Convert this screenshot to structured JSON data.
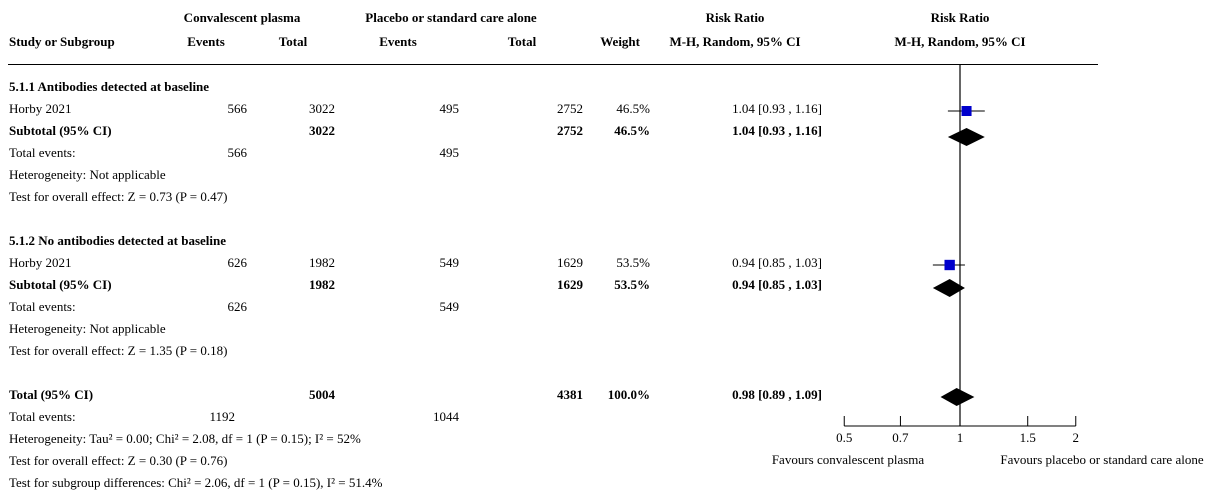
{
  "header": {
    "group1": "Convalescent plasma",
    "group2": "Placebo or standard care alone",
    "rr_top": "Risk Ratio",
    "rr_plot_top": "Risk Ratio",
    "study_col": "Study or Subgroup",
    "events1": "Events",
    "total1": "Total",
    "events2": "Events",
    "total2": "Total",
    "weight": "Weight",
    "method": "M-H, Random, 95% CI",
    "method_plot": "M-H, Random, 95% CI"
  },
  "sub1": {
    "title": "5.1.1 Antibodies detected at baseline",
    "study": "Horby 2021",
    "e1": "566",
    "t1": "3022",
    "e2": "495",
    "t2": "2752",
    "w": "46.5%",
    "ci": "1.04 [0.93 , 1.16]",
    "subtotal_label": "Subtotal (95% CI)",
    "st1": "3022",
    "st2": "2752",
    "sw": "46.5%",
    "sci": "1.04 [0.93 , 1.16]",
    "te_label": "Total events:",
    "te1": "566",
    "te2": "495",
    "het": "Heterogeneity: Not applicable",
    "test": "Test for overall effect: Z = 0.73 (P = 0.47)"
  },
  "sub2": {
    "title": "5.1.2 No antibodies detected at baseline",
    "study": "Horby 2021",
    "e1": "626",
    "t1": "1982",
    "e2": "549",
    "t2": "1629",
    "w": "53.5%",
    "ci": "0.94 [0.85 , 1.03]",
    "subtotal_label": "Subtotal (95% CI)",
    "st1": "1982",
    "st2": "1629",
    "sw": "53.5%",
    "sci": "0.94 [0.85 , 1.03]",
    "te_label": "Total events:",
    "te1": "626",
    "te2": "549",
    "het": "Heterogeneity: Not applicable",
    "test": "Test for overall effect: Z = 1.35 (P = 0.18)"
  },
  "total": {
    "label": "Total (95% CI)",
    "t1": "5004",
    "t2": "4381",
    "w": "100.0%",
    "ci": "0.98 [0.89 , 1.09]",
    "te_label": "Total events:",
    "te1": "1192",
    "te2": "1044",
    "het": "Heterogeneity: Tau² = 0.00; Chi² = 2.08, df = 1 (P = 0.15); I² = 52%",
    "test": "Test for overall effect: Z = 0.30 (P = 0.76)",
    "subgroup": "Test for subgroup differences: Chi² = 2.06, df = 1 (P = 0.15), I² = 51.4%"
  },
  "axis": {
    "favours_left": "Favours convalescent plasma",
    "favours_right": "Favours placebo or standard care alone"
  },
  "colors": {
    "study_marker": "#0000cc",
    "diamond": "#000000"
  },
  "chart_data": {
    "type": "forest",
    "scale": "log",
    "xlim": [
      0.5,
      2
    ],
    "ticks": [
      0.5,
      0.7,
      1,
      1.5,
      2
    ],
    "tick_labels": [
      "0.5",
      "0.7",
      "1",
      "1.5",
      "2"
    ],
    "null_line": 1,
    "studies": [
      {
        "row": "sub1",
        "rr": 1.04,
        "lo": 0.93,
        "hi": 1.16,
        "weight": 46.5
      },
      {
        "row": "sub2",
        "rr": 0.94,
        "lo": 0.85,
        "hi": 1.03,
        "weight": 53.5
      }
    ],
    "diamonds": [
      {
        "row": "sub1",
        "rr": 1.04,
        "lo": 0.93,
        "hi": 1.16
      },
      {
        "row": "sub2",
        "rr": 0.94,
        "lo": 0.85,
        "hi": 1.03
      },
      {
        "row": "total",
        "rr": 0.98,
        "lo": 0.89,
        "hi": 1.09
      }
    ]
  }
}
